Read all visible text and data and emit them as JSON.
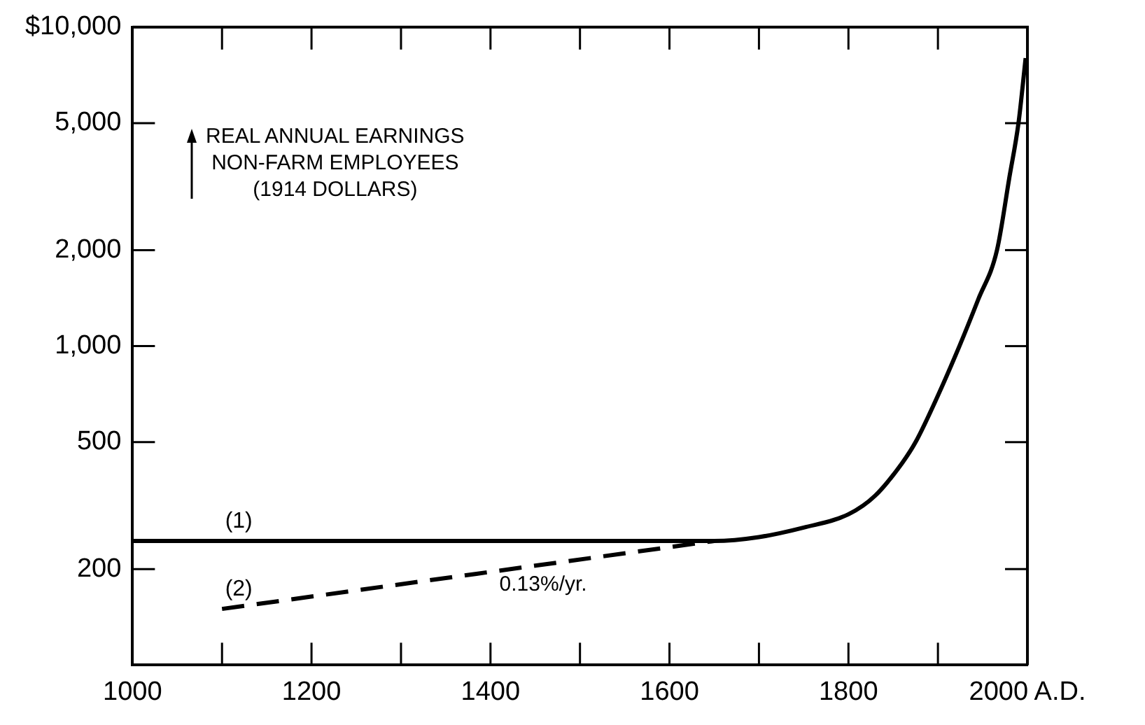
{
  "chart_data": {
    "type": "line",
    "ylabel": "REAL ANNUAL EARNINGS\nNON-FARM EMPLOYEES\n(1914 DOLLARS)",
    "log": "y",
    "grid": false,
    "legend": false,
    "marker": "none",
    "xlim": [
      1000,
      2000
    ],
    "xticks": [
      1000,
      {
        "value": 1100,
        "label": null
      },
      1200,
      {
        "value": 1300,
        "label": null
      },
      1400,
      {
        "value": 1500,
        "label": null
      },
      1600,
      {
        "value": 1700,
        "label": null
      },
      1800,
      {
        "value": 1900,
        "label": null
      },
      {
        "value": 2000,
        "label": "2000 A.D."
      }
    ],
    "ylim": [
      100,
      10000
    ],
    "yticks": [
      200,
      {
        "value": 500,
        "label": "500"
      },
      {
        "value": 1000,
        "label": "1,000"
      },
      {
        "value": 2000,
        "label": "2,000"
      },
      {
        "value": 5000,
        "label": "5,000"
      },
      {
        "value": 10000,
        "label": "$10,000"
      }
    ],
    "series": [
      {
        "name": "(1)",
        "color": "#000000",
        "line_style": "solid",
        "x": [
          1000,
          1650,
          1700,
          1750,
          1800,
          1830,
          1860,
          1875,
          1900,
          1924,
          1945,
          1966,
          1980,
          1990,
          1998
        ],
        "values": [
          245,
          245,
          252,
          270,
          297,
          340,
          430,
          500,
          700,
          1000,
          1400,
          2000,
          3400,
          5000,
          8000
        ]
      },
      {
        "name": "(2)",
        "color": "#000000",
        "line_style": "dashed",
        "x": [
          1100,
          1650
        ],
        "values": [
          150,
          245
        ]
      }
    ],
    "annotations": [
      "0.13%/yr."
    ]
  }
}
